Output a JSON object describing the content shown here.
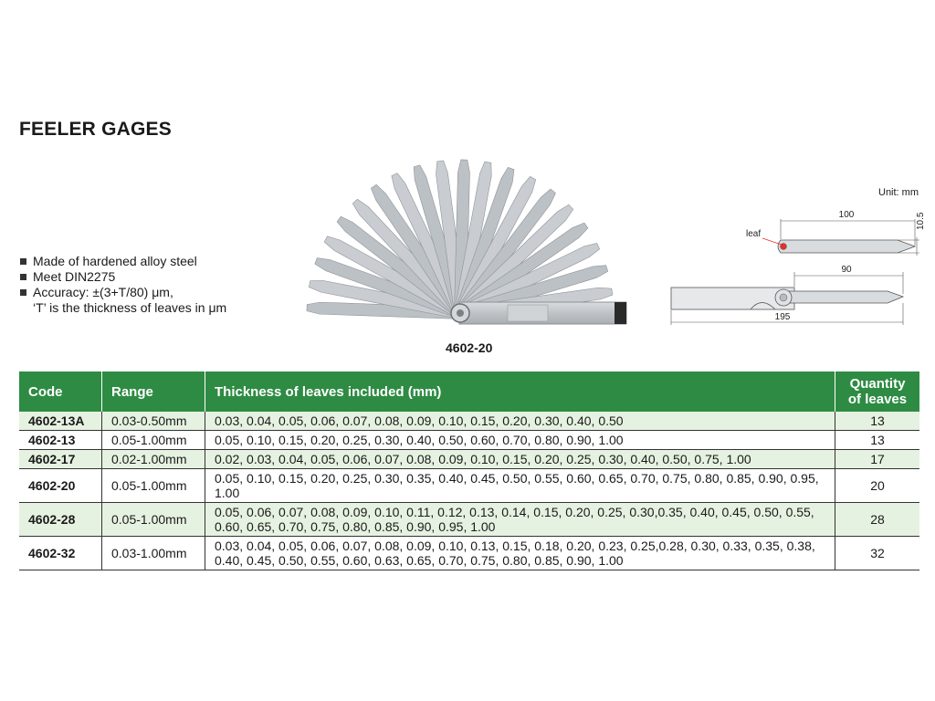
{
  "title": "FEELER GAGES",
  "features": [
    "Made of hardened alloy steel",
    "Meet DIN2275",
    "Accuracy: ±(3+T/80) μm,",
    "‘T’ is the thickness of leaves in μm"
  ],
  "product_caption": "4602-20",
  "drawing": {
    "unit": "Unit: mm",
    "leaf_label": "leaf",
    "dim_100": "100",
    "dim_10_5": "10.5",
    "dim_90": "90",
    "dim_195": "195"
  },
  "table": {
    "headers": {
      "code": "Code",
      "range": "Range",
      "thickness": "Thickness of leaves included (mm)",
      "qty_line1": "Quantity",
      "qty_line2": "of leaves"
    },
    "rows": [
      {
        "code": "4602-13A",
        "range": "0.03-0.50mm",
        "thickness": "0.03, 0.04, 0.05, 0.06, 0.07, 0.08, 0.09, 0.10, 0.15, 0.20, 0.30, 0.40, 0.50",
        "qty": "13"
      },
      {
        "code": "4602-13",
        "range": "0.05-1.00mm",
        "thickness": "0.05, 0.10, 0.15, 0.20, 0.25, 0.30, 0.40, 0.50, 0.60, 0.70, 0.80, 0.90, 1.00",
        "qty": "13"
      },
      {
        "code": "4602-17",
        "range": "0.02-1.00mm",
        "thickness": "0.02, 0.03, 0.04, 0.05, 0.06, 0.07, 0.08, 0.09, 0.10, 0.15, 0.20, 0.25, 0.30, 0.40, 0.50, 0.75, 1.00",
        "qty": "17"
      },
      {
        "code": "4602-20",
        "range": "0.05-1.00mm",
        "thickness": "0.05, 0.10, 0.15, 0.20, 0.25, 0.30, 0.35, 0.40, 0.45, 0.50, 0.55, 0.60, 0.65, 0.70, 0.75, 0.80, 0.85, 0.90, 0.95, 1.00",
        "qty": "20"
      },
      {
        "code": "4602-28",
        "range": "0.05-1.00mm",
        "thickness": "0.05, 0.06, 0.07, 0.08, 0.09, 0.10, 0.11, 0.12, 0.13, 0.14, 0.15, 0.20, 0.25, 0.30,0.35, 0.40, 0.45, 0.50, 0.55, 0.60, 0.65, 0.70, 0.75, 0.80, 0.85, 0.90, 0.95, 1.00",
        "qty": "28"
      },
      {
        "code": "4602-32",
        "range": "0.03-1.00mm",
        "thickness": "0.03, 0.04, 0.05, 0.06, 0.07, 0.08, 0.09, 0.10, 0.13, 0.15, 0.18, 0.20, 0.23, 0.25,0.28, 0.30, 0.33, 0.35, 0.38, 0.40, 0.45, 0.50, 0.55, 0.60, 0.63, 0.65, 0.70, 0.75, 0.80, 0.85, 0.90, 1.00",
        "qty": "32"
      }
    ]
  },
  "colors": {
    "header_green": "#2e8b43",
    "alt_row_green": "#e6f2e1",
    "steel": "#c4c8cc"
  }
}
